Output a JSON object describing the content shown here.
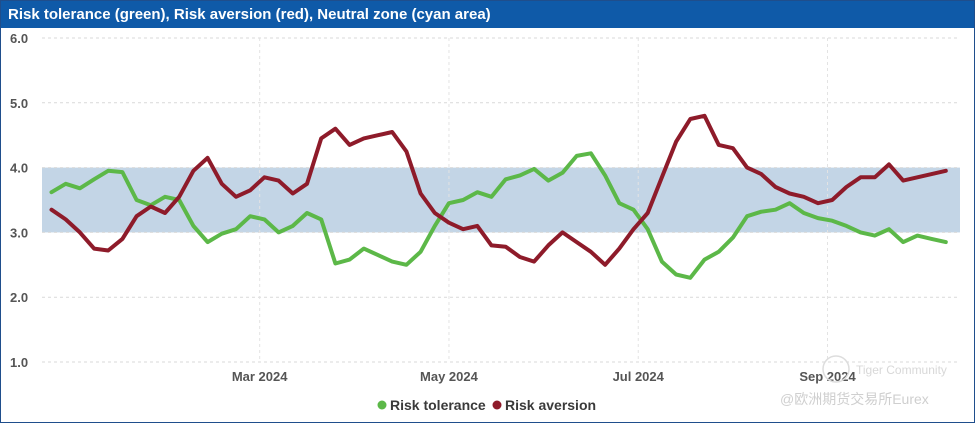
{
  "chart_data": {
    "type": "line",
    "title": "Risk tolerance (green), Risk aversion (red), Neutral zone (cyan area)",
    "ylim": [
      1.0,
      6.0
    ],
    "y_ticks": [
      "6.0",
      "5.0",
      "4.0",
      "3.0",
      "2.0",
      "1.0"
    ],
    "x_ticks": [
      "Mar 2024",
      "May 2024",
      "Jul 2024",
      "Sep 2024"
    ],
    "x_tick_positions": [
      1.0,
      3.0,
      5.0,
      7.0
    ],
    "xlim": [
      -1.3,
      8.4
    ],
    "neutral_zone": [
      3.0,
      4.0
    ],
    "colors": {
      "tolerance": "#5cb848",
      "aversion": "#8e1b2a",
      "zone": "#c3d5e6",
      "title_bg": "#0f5aa8"
    },
    "series": [
      {
        "name": "Risk tolerance",
        "key": "tolerance",
        "x": [
          -1.2,
          -1.05,
          -0.9,
          -0.75,
          -0.6,
          -0.45,
          -0.3,
          -0.15,
          0.0,
          0.15,
          0.3,
          0.45,
          0.6,
          0.75,
          0.9,
          1.05,
          1.2,
          1.35,
          1.5,
          1.65,
          1.8,
          1.95,
          2.1,
          2.25,
          2.4,
          2.55,
          2.7,
          2.85,
          3.0,
          3.15,
          3.3,
          3.45,
          3.6,
          3.75,
          3.9,
          4.05,
          4.2,
          4.35,
          4.5,
          4.65,
          4.8,
          4.95,
          5.1,
          5.25,
          5.4,
          5.55,
          5.7,
          5.85,
          6.0,
          6.15,
          6.3,
          6.45,
          6.6,
          6.75,
          6.9,
          7.05,
          7.2,
          7.35,
          7.5,
          7.65,
          7.8,
          7.95,
          8.1,
          8.25
        ],
        "values": [
          3.62,
          3.75,
          3.68,
          3.82,
          3.95,
          3.93,
          3.5,
          3.42,
          3.55,
          3.5,
          3.1,
          2.85,
          2.98,
          3.05,
          3.25,
          3.2,
          3.0,
          3.1,
          3.3,
          3.2,
          2.52,
          2.58,
          2.75,
          2.65,
          2.55,
          2.5,
          2.7,
          3.1,
          3.45,
          3.5,
          3.62,
          3.55,
          3.82,
          3.88,
          3.98,
          3.8,
          3.92,
          4.18,
          4.22,
          3.88,
          3.45,
          3.35,
          3.05,
          2.55,
          2.35,
          2.3,
          2.58,
          2.7,
          2.92,
          3.25,
          3.32,
          3.35,
          3.45,
          3.3,
          3.22,
          3.18,
          3.1,
          3.0,
          2.95,
          3.05,
          2.85,
          2.95,
          2.9,
          2.85
        ]
      },
      {
        "name": "Risk aversion",
        "key": "aversion",
        "x": [
          -1.2,
          -1.05,
          -0.9,
          -0.75,
          -0.6,
          -0.45,
          -0.3,
          -0.15,
          0.0,
          0.15,
          0.3,
          0.45,
          0.6,
          0.75,
          0.9,
          1.05,
          1.2,
          1.35,
          1.5,
          1.65,
          1.8,
          1.95,
          2.1,
          2.25,
          2.4,
          2.55,
          2.7,
          2.85,
          3.0,
          3.15,
          3.3,
          3.45,
          3.6,
          3.75,
          3.9,
          4.05,
          4.2,
          4.35,
          4.5,
          4.65,
          4.8,
          4.95,
          5.1,
          5.25,
          5.4,
          5.55,
          5.7,
          5.85,
          6.0,
          6.15,
          6.3,
          6.45,
          6.6,
          6.75,
          6.9,
          7.05,
          7.2,
          7.35,
          7.5,
          7.65,
          7.8,
          7.95,
          8.1,
          8.25
        ],
        "values": [
          3.35,
          3.2,
          3.0,
          2.75,
          2.72,
          2.9,
          3.25,
          3.4,
          3.3,
          3.55,
          3.95,
          4.15,
          3.75,
          3.55,
          3.65,
          3.85,
          3.8,
          3.6,
          3.75,
          4.45,
          4.6,
          4.35,
          4.45,
          4.5,
          4.55,
          4.25,
          3.6,
          3.3,
          3.15,
          3.05,
          3.1,
          2.8,
          2.78,
          2.62,
          2.55,
          2.8,
          3.0,
          2.85,
          2.7,
          2.5,
          2.75,
          3.05,
          3.3,
          3.85,
          4.4,
          4.75,
          4.8,
          4.35,
          4.3,
          4.0,
          3.9,
          3.7,
          3.6,
          3.55,
          3.45,
          3.5,
          3.7,
          3.85,
          3.85,
          4.05,
          3.8,
          3.85,
          3.9,
          3.95
        ]
      }
    ]
  },
  "legend": {
    "tolerance_label": "Risk tolerance",
    "aversion_label": "Risk aversion"
  },
  "watermark": {
    "line1": "Tiger Community",
    "line2": "@欧洲期货交易所Eurex"
  }
}
